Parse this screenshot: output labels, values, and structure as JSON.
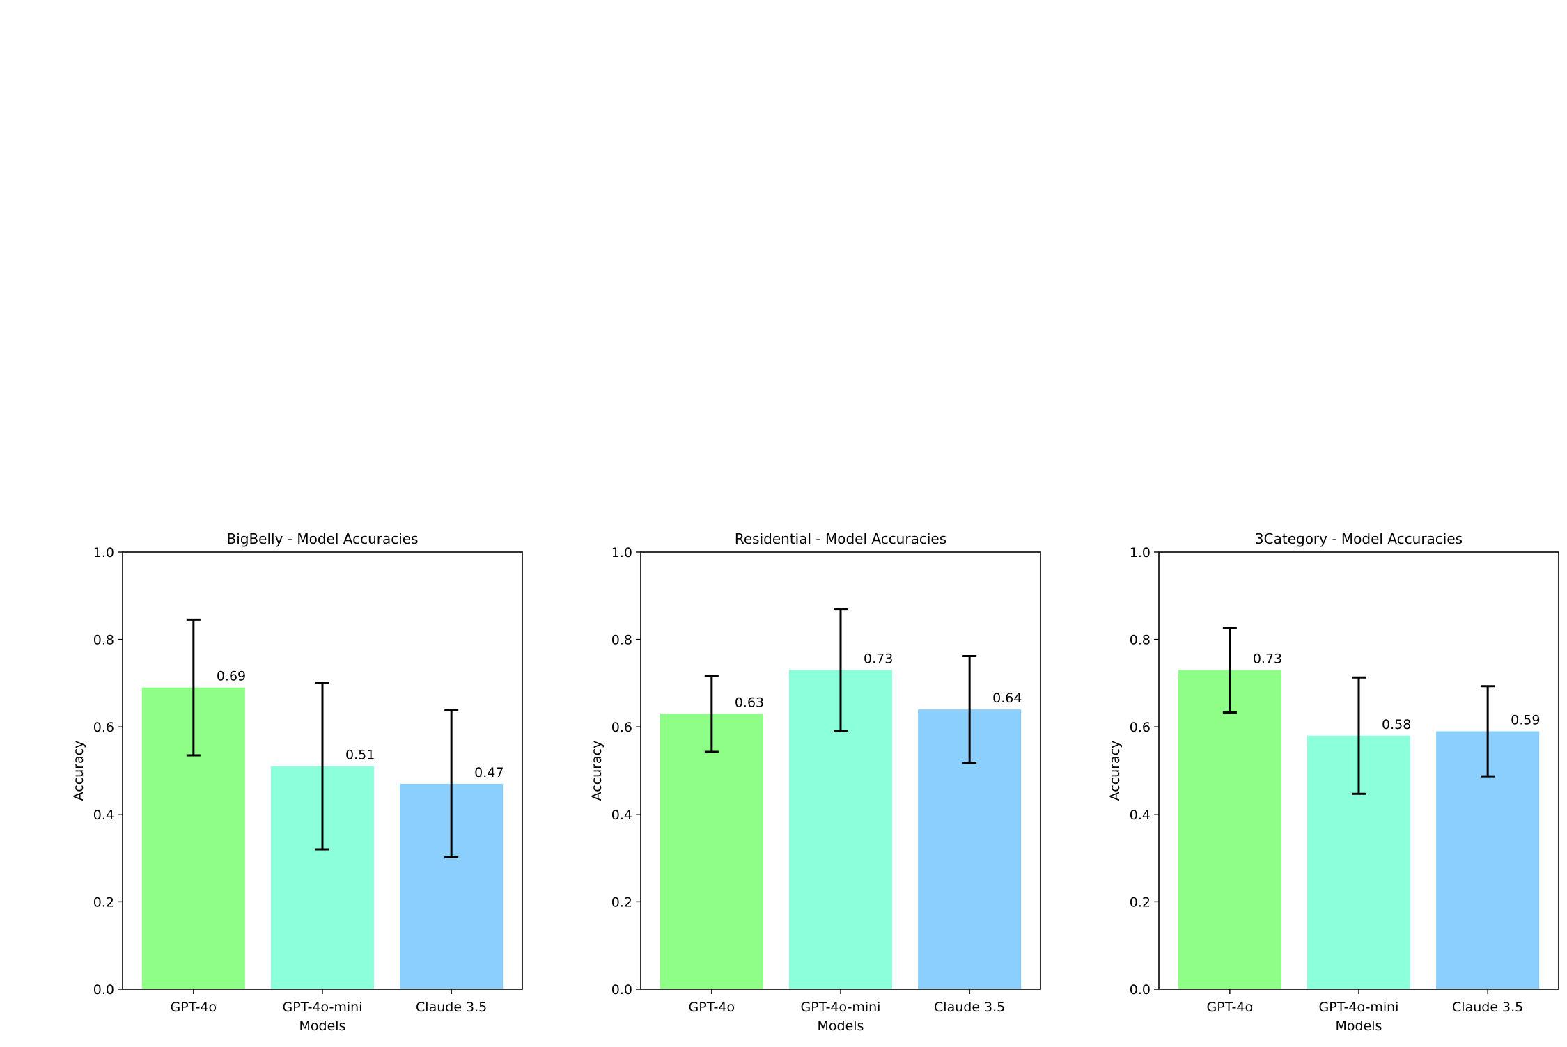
{
  "chart_data": [
    {
      "type": "bar",
      "title": "BigBelly - Model Accuracies",
      "xlabel": "Models",
      "ylabel": "Accuracy",
      "ylim": [
        0,
        1.0
      ],
      "yticks": [
        "0.0",
        "0.2",
        "0.4",
        "0.6",
        "0.8",
        "1.0"
      ],
      "categories": [
        "GPT-4o",
        "GPT-4o-mini",
        "Claude 3.5"
      ],
      "values": [
        0.69,
        0.51,
        0.47
      ],
      "labels": [
        "0.69",
        "0.51",
        "0.47"
      ],
      "errors": [
        0.155,
        0.19,
        0.168
      ],
      "colors": [
        "#8ffe87",
        "#8cffdb",
        "#8acffd"
      ]
    },
    {
      "type": "bar",
      "title": "Residential - Model Accuracies",
      "xlabel": "Models",
      "ylabel": "Accuracy",
      "ylim": [
        0,
        1.0
      ],
      "yticks": [
        "0.0",
        "0.2",
        "0.4",
        "0.6",
        "0.8",
        "1.0"
      ],
      "categories": [
        "GPT-4o",
        "GPT-4o-mini",
        "Claude 3.5"
      ],
      "values": [
        0.63,
        0.73,
        0.64
      ],
      "labels": [
        "0.63",
        "0.73",
        "0.64"
      ],
      "errors": [
        0.087,
        0.14,
        0.122
      ],
      "colors": [
        "#8ffe87",
        "#8cffdb",
        "#8acffd"
      ]
    },
    {
      "type": "bar",
      "title": "3Category - Model Accuracies",
      "xlabel": "Models",
      "ylabel": "Accuracy",
      "ylim": [
        0,
        1.0
      ],
      "yticks": [
        "0.0",
        "0.2",
        "0.4",
        "0.6",
        "0.8",
        "1.0"
      ],
      "categories": [
        "GPT-4o",
        "GPT-4o-mini",
        "Claude 3.5"
      ],
      "values": [
        0.73,
        0.58,
        0.59
      ],
      "labels": [
        "0.73",
        "0.58",
        "0.59"
      ],
      "errors": [
        0.097,
        0.133,
        0.103
      ],
      "colors": [
        "#8ffe87",
        "#8cffdb",
        "#8acffd"
      ]
    }
  ]
}
